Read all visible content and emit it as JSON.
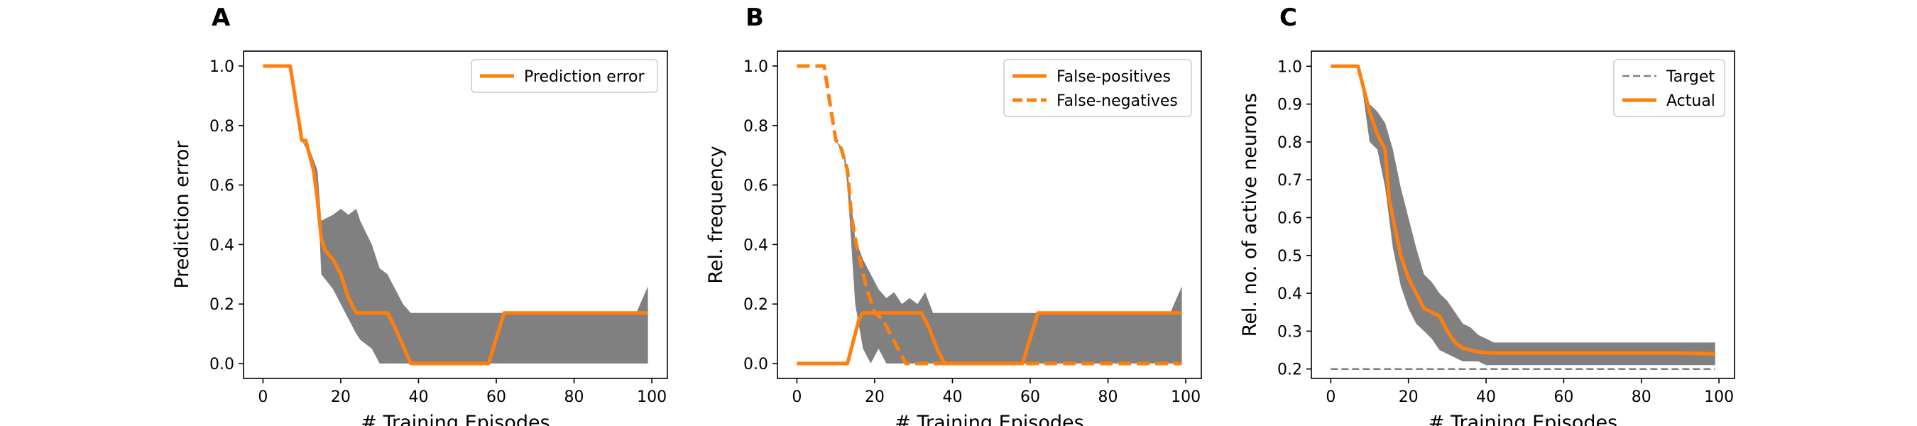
{
  "chart_data": [
    {
      "panel": "A",
      "type": "line",
      "xlabel": "# Training Episodes",
      "ylabel": "Prediction error",
      "xlim": [
        -5,
        104
      ],
      "ylim": [
        -0.05,
        1.05
      ],
      "xticks": [
        0,
        20,
        40,
        60,
        80,
        100
      ],
      "yticks": [
        0.0,
        0.2,
        0.4,
        0.6,
        0.8,
        1.0
      ],
      "ytick_labels": [
        "0.0",
        "0.2",
        "0.4",
        "0.6",
        "0.8",
        "1.0"
      ],
      "legend_position": "top-right",
      "band": {
        "x": [
          0,
          7,
          10,
          12,
          14,
          15,
          18,
          20,
          22,
          24,
          25,
          28,
          30,
          32,
          34,
          36,
          38,
          40,
          60,
          62,
          76,
          78,
          80,
          82,
          96,
          99
        ],
        "lower": [
          1.0,
          1.0,
          0.75,
          0.7,
          0.6,
          0.3,
          0.25,
          0.2,
          0.15,
          0.1,
          0.08,
          0.05,
          0.0,
          0.0,
          0.0,
          0.0,
          0.0,
          0.0,
          0.0,
          0.0,
          0.0,
          0.0,
          0.0,
          0.0,
          0.0,
          0.0
        ],
        "upper": [
          1.0,
          1.0,
          0.75,
          0.72,
          0.65,
          0.48,
          0.5,
          0.52,
          0.5,
          0.52,
          0.48,
          0.4,
          0.32,
          0.3,
          0.25,
          0.2,
          0.17,
          0.17,
          0.17,
          0.17,
          0.17,
          0.17,
          0.17,
          0.17,
          0.17,
          0.26
        ]
      },
      "series": [
        {
          "name": "Prediction error",
          "style": "solid",
          "x": [
            0,
            7,
            10,
            11,
            13,
            14,
            15,
            16,
            18,
            20,
            22,
            24,
            26,
            28,
            30,
            32,
            34,
            36,
            38,
            40,
            58,
            62,
            99
          ],
          "y": [
            1.0,
            1.0,
            0.75,
            0.75,
            0.65,
            0.55,
            0.42,
            0.38,
            0.35,
            0.3,
            0.22,
            0.17,
            0.17,
            0.17,
            0.17,
            0.17,
            0.12,
            0.06,
            0.0,
            0.0,
            0.0,
            0.17,
            0.17
          ]
        }
      ]
    },
    {
      "panel": "B",
      "type": "line",
      "xlabel": "# Training Episodes",
      "ylabel": "Rel. frequency",
      "xlim": [
        -5,
        104
      ],
      "ylim": [
        -0.05,
        1.05
      ],
      "xticks": [
        0,
        20,
        40,
        60,
        80,
        100
      ],
      "yticks": [
        0.0,
        0.2,
        0.4,
        0.6,
        0.8,
        1.0
      ],
      "ytick_labels": [
        "0.0",
        "0.2",
        "0.4",
        "0.6",
        "0.8",
        "1.0"
      ],
      "legend_position": "top-right",
      "band": {
        "x": [
          0,
          7,
          10,
          12,
          13,
          15,
          17,
          19,
          21,
          23,
          25,
          27,
          29,
          31,
          33,
          35,
          37,
          40,
          58,
          62,
          76,
          78,
          80,
          82,
          96,
          99
        ],
        "lower": [
          1.0,
          1.0,
          0.75,
          0.7,
          0.6,
          0.2,
          0.05,
          0.0,
          0.05,
          0.0,
          0.0,
          0.0,
          0.0,
          0.0,
          0.0,
          0.0,
          0.0,
          0.0,
          0.0,
          0.0,
          0.0,
          0.0,
          0.0,
          0.0,
          0.0,
          0.0
        ],
        "upper": [
          1.0,
          1.0,
          0.75,
          0.72,
          0.65,
          0.42,
          0.35,
          0.3,
          0.25,
          0.22,
          0.24,
          0.2,
          0.22,
          0.2,
          0.24,
          0.17,
          0.17,
          0.17,
          0.17,
          0.17,
          0.17,
          0.17,
          0.17,
          0.17,
          0.17,
          0.26
        ]
      },
      "series": [
        {
          "name": "False-positives",
          "style": "solid",
          "x": [
            0,
            13,
            16,
            17,
            20,
            22,
            24,
            26,
            28,
            30,
            32,
            34,
            36,
            38,
            40,
            58,
            62,
            99
          ],
          "y": [
            0.0,
            0.0,
            0.15,
            0.17,
            0.17,
            0.17,
            0.17,
            0.17,
            0.17,
            0.17,
            0.17,
            0.12,
            0.05,
            0.0,
            0.0,
            0.0,
            0.17,
            0.17
          ]
        },
        {
          "name": "False-negatives",
          "style": "dashed",
          "x": [
            0,
            7,
            10,
            11,
            13,
            14,
            15,
            16,
            18,
            20,
            22,
            24,
            26,
            28,
            99
          ],
          "y": [
            1.0,
            1.0,
            0.75,
            0.74,
            0.65,
            0.5,
            0.42,
            0.36,
            0.25,
            0.17,
            0.15,
            0.1,
            0.05,
            0.0,
            0.0
          ]
        }
      ]
    },
    {
      "panel": "C",
      "type": "line",
      "xlabel": "# Training Episodes",
      "ylabel": "Rel. no. of active neurons",
      "xlim": [
        -5,
        104
      ],
      "ylim": [
        0.175,
        1.04
      ],
      "xticks": [
        0,
        20,
        40,
        60,
        80,
        100
      ],
      "yticks": [
        0.2,
        0.3,
        0.4,
        0.5,
        0.6,
        0.7,
        0.8,
        0.9,
        1.0
      ],
      "ytick_labels": [
        "0.2",
        "0.3",
        "0.4",
        "0.5",
        "0.6",
        "0.7",
        "0.8",
        "0.9",
        "1.0"
      ],
      "legend_position": "top-right",
      "band": {
        "x": [
          0,
          7,
          8,
          10,
          12,
          14,
          16,
          18,
          20,
          22,
          24,
          26,
          28,
          30,
          32,
          34,
          36,
          38,
          40,
          42,
          99
        ],
        "lower": [
          1.0,
          1.0,
          0.95,
          0.8,
          0.78,
          0.68,
          0.52,
          0.42,
          0.36,
          0.32,
          0.3,
          0.28,
          0.25,
          0.24,
          0.23,
          0.22,
          0.22,
          0.22,
          0.21,
          0.21,
          0.21
        ],
        "upper": [
          1.0,
          1.0,
          0.97,
          0.9,
          0.88,
          0.85,
          0.78,
          0.68,
          0.6,
          0.52,
          0.45,
          0.43,
          0.4,
          0.38,
          0.35,
          0.32,
          0.31,
          0.29,
          0.28,
          0.27,
          0.27
        ]
      },
      "series": [
        {
          "name": "Target",
          "style": "thin-dashed",
          "x": [
            0,
            99
          ],
          "y": [
            0.2,
            0.2
          ]
        },
        {
          "name": "Actual",
          "style": "solid",
          "x": [
            0,
            7,
            9,
            10,
            12,
            14,
            15,
            16,
            18,
            20,
            22,
            24,
            26,
            28,
            30,
            32,
            34,
            36,
            38,
            40,
            42,
            60,
            80,
            90,
            99
          ],
          "y": [
            1.0,
            1.0,
            0.92,
            0.88,
            0.82,
            0.78,
            0.65,
            0.6,
            0.5,
            0.44,
            0.4,
            0.36,
            0.35,
            0.34,
            0.3,
            0.27,
            0.255,
            0.25,
            0.245,
            0.243,
            0.242,
            0.242,
            0.242,
            0.242,
            0.24
          ]
        }
      ]
    }
  ],
  "style": {
    "line_color": "#ff7f0e",
    "band_color": "#808080",
    "target_color": "#808080",
    "axis_color": "#000000",
    "background": "#ffffff"
  }
}
